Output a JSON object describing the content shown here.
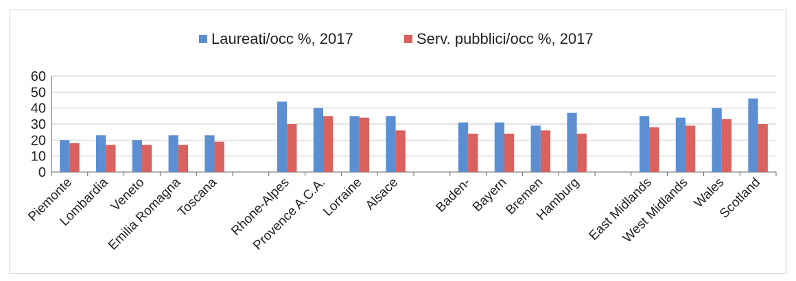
{
  "colors": {
    "series1": "#5b8fd1",
    "series2": "#d9615e",
    "grid": "#c7c7c7",
    "axis": "#666666"
  },
  "chart_data": {
    "type": "bar",
    "ylim": [
      0,
      60
    ],
    "yticks": [
      0,
      10,
      20,
      30,
      40,
      50,
      60
    ],
    "grid": true,
    "legend_position": "top",
    "title": "",
    "xlabel": "",
    "ylabel": "",
    "groups": [
      [
        "Piemonte",
        "Lombardia",
        "Veneto",
        "Emilia Romagna",
        "Toscana"
      ],
      [
        "Rhone-Alpes",
        "Provence A.C.A.",
        "Lorraine",
        "Alsace"
      ],
      [
        "Baden-",
        "Bayern",
        "Bremen",
        "Hamburg"
      ],
      [
        "East Midlands",
        "West Midlands",
        "Wales",
        "Scotland"
      ]
    ],
    "categories": [
      "Piemonte",
      "Lombardia",
      "Veneto",
      "Emilia Romagna",
      "Toscana",
      "Rhone-Alpes",
      "Provence A.C.A.",
      "Lorraine",
      "Alsace",
      "Baden-",
      "Bayern",
      "Bremen",
      "Hamburg",
      "East Midlands",
      "West Midlands",
      "Wales",
      "Scotland"
    ],
    "series": [
      {
        "name": "Laureati/occ %, 2017",
        "values": [
          20,
          23,
          20,
          23,
          23,
          44,
          40,
          35,
          35,
          31,
          31,
          29,
          37,
          35,
          34,
          40,
          46
        ]
      },
      {
        "name": "Serv. pubblici/occ %, 2017",
        "values": [
          18,
          17,
          17,
          17,
          19,
          30,
          35,
          34,
          26,
          24,
          24,
          26,
          24,
          28,
          29,
          33,
          30
        ]
      }
    ]
  }
}
